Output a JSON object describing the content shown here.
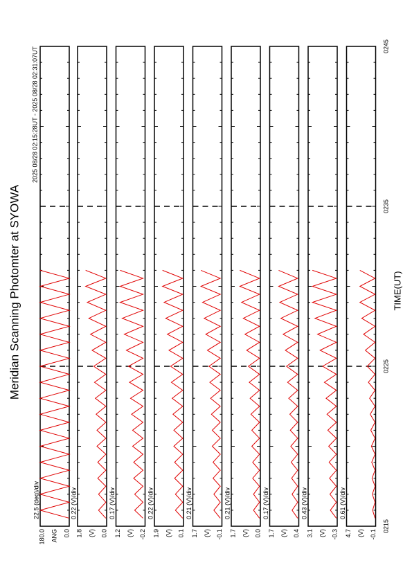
{
  "chart_data": [
    {
      "type": "line",
      "title": "Meridian Scanning Photomter at SYOWA",
      "subtitle": "2025 08/28 02:15:28UT - 2025 08/28 02:31:07UT",
      "scale_label": "22.5 (deg)/div",
      "unit": "ANG",
      "color": "#e00000",
      "x": [
        15.5,
        16,
        16.5,
        17,
        17.5,
        18,
        18.5,
        19,
        19.5,
        20,
        20.5,
        21,
        21.5,
        22,
        22.5,
        23,
        23.5,
        24,
        24.5,
        25,
        25.5,
        26,
        26.5,
        27,
        27.5,
        28,
        28.5,
        29,
        29.5,
        30,
        30.5,
        31
      ],
      "values": [
        0,
        180,
        0,
        180,
        0,
        180,
        0,
        180,
        0,
        180,
        0,
        180,
        0,
        180,
        0,
        180,
        0,
        180,
        0,
        180,
        0,
        180,
        0,
        180,
        0,
        180,
        0,
        180,
        0,
        180,
        0,
        180
      ],
      "xlim": [
        15,
        45
      ],
      "xticks": [
        {
          "value": 25,
          "label": "0225"
        },
        {
          "value": 35,
          "label": "0235"
        }
      ],
      "ylim": [
        0,
        180
      ],
      "yticks": [
        {
          "value": 0,
          "label": "0.0"
        },
        {
          "value": 180,
          "label": "180.0"
        }
      ]
    },
    {
      "type": "line",
      "scale_label": "0.22 (V)/div",
      "unit": "(V)",
      "color": "#e00000",
      "x": [
        15.5,
        16,
        16.5,
        17,
        17.5,
        18,
        18.5,
        19,
        19.5,
        20,
        20.5,
        21,
        21.5,
        22,
        22.5,
        23,
        23.5,
        24,
        24.5,
        25,
        25.5,
        26,
        26.5,
        27,
        27.5,
        28,
        28.5,
        29,
        29.5,
        30,
        30.5,
        31
      ],
      "values": [
        0.05,
        0.5,
        0.05,
        0.5,
        0.05,
        0.55,
        0.05,
        0.55,
        0.05,
        0.6,
        0.05,
        0.6,
        0.05,
        0.65,
        0.05,
        0.7,
        0.05,
        0.75,
        0.05,
        0.8,
        0.05,
        0.9,
        0.05,
        1.0,
        0.05,
        1.1,
        0.05,
        1.2,
        0.05,
        1.3,
        0.05,
        1.3
      ],
      "xlim": [
        15,
        45
      ],
      "xticks": [
        {
          "value": 25,
          "label": "0225"
        },
        {
          "value": 35,
          "label": "0235"
        }
      ],
      "ylim": [
        0,
        1.8
      ],
      "yticks": [
        {
          "value": 0,
          "label": "0.0"
        },
        1.8
      ]
    },
    {
      "type": "line",
      "scale_label": "0.17 (V)/div",
      "unit": "(V)",
      "color": "#e00000",
      "x": [
        15.5,
        16,
        16.5,
        17,
        17.5,
        18,
        18.5,
        19,
        19.5,
        20,
        20.5,
        21,
        21.5,
        22,
        22.5,
        23,
        23.5,
        24,
        24.5,
        25,
        25.5,
        26,
        26.5,
        27,
        27.5,
        28,
        28.5,
        29,
        29.5,
        30,
        30.5,
        31
      ],
      "values": [
        -0.1,
        0.3,
        -0.1,
        0.3,
        -0.1,
        0.35,
        -0.1,
        0.35,
        -0.1,
        0.4,
        -0.1,
        0.4,
        -0.1,
        0.45,
        -0.1,
        0.5,
        -0.1,
        0.55,
        -0.1,
        0.6,
        -0.1,
        0.7,
        -0.1,
        0.8,
        -0.1,
        0.9,
        -0.1,
        1.0,
        -0.1,
        1.0,
        -0.1,
        1.0
      ],
      "xlim": [
        15,
        45
      ],
      "xticks": [
        {
          "value": 25,
          "label": "0225"
        },
        {
          "value": 35,
          "label": "0235"
        }
      ],
      "ylim": [
        -0.2,
        1.2
      ],
      "yticks": [
        -0.2,
        1.2
      ]
    },
    {
      "type": "line",
      "scale_label": "0.22 (V)/div",
      "unit": "(V)",
      "color": "#e00000",
      "x": [
        15.5,
        16,
        16.5,
        17,
        17.5,
        18,
        18.5,
        19,
        19.5,
        20,
        20.5,
        21,
        21.5,
        22,
        22.5,
        23,
        23.5,
        24,
        24.5,
        25,
        25.5,
        26,
        26.5,
        27,
        27.5,
        28,
        28.5,
        29,
        29.5,
        30,
        30.5,
        31
      ],
      "values": [
        0.15,
        0.6,
        0.15,
        0.6,
        0.15,
        0.65,
        0.15,
        0.65,
        0.15,
        0.7,
        0.15,
        0.7,
        0.15,
        0.75,
        0.15,
        0.8,
        0.15,
        0.85,
        0.15,
        0.9,
        0.15,
        1.0,
        0.15,
        1.1,
        0.15,
        1.2,
        0.15,
        1.3,
        0.15,
        1.4,
        0.15,
        1.4
      ],
      "xlim": [
        15,
        45
      ],
      "xticks": [
        {
          "value": 25,
          "label": "0225"
        },
        {
          "value": 35,
          "label": "0235"
        }
      ],
      "ylim": [
        0.1,
        1.9
      ],
      "yticks": [
        0.1,
        1.9
      ]
    },
    {
      "type": "line",
      "scale_label": "0.21 (V)/div",
      "unit": "(V)",
      "color": "#e00000",
      "x": [
        15.5,
        16,
        16.5,
        17,
        17.5,
        18,
        18.5,
        19,
        19.5,
        20,
        20.5,
        21,
        21.5,
        22,
        22.5,
        23,
        23.5,
        24,
        24.5,
        25,
        25.5,
        26,
        26.5,
        27,
        27.5,
        28,
        28.5,
        29,
        29.5,
        30,
        30.5,
        31
      ],
      "values": [
        0.0,
        0.4,
        0.0,
        0.4,
        0.0,
        0.45,
        0.0,
        0.45,
        0.0,
        0.5,
        0.0,
        0.5,
        0.0,
        0.55,
        0.0,
        0.6,
        0.0,
        0.65,
        0.0,
        0.7,
        0.0,
        0.8,
        0.0,
        0.9,
        0.0,
        1.0,
        0.0,
        1.1,
        0.0,
        1.2,
        0.0,
        1.2
      ],
      "xlim": [
        15,
        45
      ],
      "xticks": [
        {
          "value": 25,
          "label": "0225"
        },
        {
          "value": 35,
          "label": "0235"
        }
      ],
      "ylim": [
        -0.1,
        1.7
      ],
      "yticks": [
        -0.1,
        1.7
      ]
    },
    {
      "type": "line",
      "scale_label": "0.21 (V)/div",
      "unit": "(V)",
      "color": "#e00000",
      "x": [
        15.5,
        16,
        16.5,
        17,
        17.5,
        18,
        18.5,
        19,
        19.5,
        20,
        20.5,
        21,
        21.5,
        22,
        22.5,
        23,
        23.5,
        24,
        24.5,
        25,
        25.5,
        26,
        26.5,
        27,
        27.5,
        28,
        28.5,
        29,
        29.5,
        30,
        30.5,
        31
      ],
      "values": [
        0.05,
        0.4,
        0.05,
        0.4,
        0.05,
        0.45,
        0.05,
        0.45,
        0.05,
        0.5,
        0.05,
        0.5,
        0.05,
        0.55,
        0.05,
        0.6,
        0.05,
        0.65,
        0.05,
        0.7,
        0.05,
        0.8,
        0.05,
        0.9,
        0.05,
        1.0,
        0.05,
        1.1,
        0.05,
        1.2,
        0.05,
        1.2
      ],
      "xlim": [
        15,
        45
      ],
      "xticks": [
        {
          "value": 25,
          "label": "0225"
        },
        {
          "value": 35,
          "label": "0235"
        }
      ],
      "ylim": [
        0,
        1.7
      ],
      "yticks": [
        {
          "value": 0,
          "label": "0.0"
        },
        1.7
      ]
    },
    {
      "type": "line",
      "scale_label": "0.17 (V)/div",
      "unit": "(V)",
      "color": "#e00000",
      "x": [
        15.5,
        16,
        16.5,
        17,
        17.5,
        18,
        18.5,
        19,
        19.5,
        20,
        20.5,
        21,
        21.5,
        22,
        22.5,
        23,
        23.5,
        24,
        24.5,
        25,
        25.5,
        26,
        26.5,
        27,
        27.5,
        28,
        28.5,
        29,
        29.5,
        30,
        30.5,
        31
      ],
      "values": [
        0.45,
        0.7,
        0.45,
        0.7,
        0.45,
        0.72,
        0.45,
        0.74,
        0.45,
        0.76,
        0.45,
        0.78,
        0.45,
        0.8,
        0.45,
        0.85,
        0.45,
        0.9,
        0.45,
        0.95,
        0.45,
        1.0,
        0.45,
        1.1,
        0.45,
        1.2,
        0.45,
        1.25,
        0.45,
        1.3,
        0.45,
        1.3
      ],
      "xlim": [
        15,
        45
      ],
      "xticks": [
        {
          "value": 25,
          "label": "0225"
        },
        {
          "value": 35,
          "label": "0235"
        }
      ],
      "ylim": [
        0.4,
        1.7
      ],
      "yticks": [
        0.4,
        1.7
      ]
    },
    {
      "type": "line",
      "scale_label": "0.43 (V)/div",
      "unit": "(V)",
      "color": "#e00000",
      "x": [
        15.5,
        16,
        16.5,
        17,
        17.5,
        18,
        18.5,
        19,
        19.5,
        20,
        20.5,
        21,
        21.5,
        22,
        22.5,
        23,
        23.5,
        24,
        24.5,
        25,
        25.5,
        26,
        26.5,
        27,
        27.5,
        28,
        28.5,
        29,
        29.5,
        30,
        30.5,
        31
      ],
      "values": [
        -0.2,
        0.5,
        -0.2,
        0.55,
        -0.2,
        0.6,
        -0.2,
        0.65,
        -0.2,
        0.7,
        -0.2,
        0.8,
        -0.2,
        0.9,
        -0.2,
        1.0,
        -0.2,
        1.2,
        -0.2,
        1.4,
        -0.2,
        1.7,
        -0.2,
        2.0,
        -0.2,
        2.3,
        -0.2,
        2.6,
        -0.2,
        2.6,
        -0.2,
        2.6
      ],
      "xlim": [
        15,
        45
      ],
      "xticks": [
        {
          "value": 25,
          "label": "0225"
        },
        {
          "value": 35,
          "label": "0235"
        }
      ],
      "ylim": [
        -0.3,
        3.1
      ],
      "yticks": [
        -0.3,
        3.1
      ]
    },
    {
      "type": "line",
      "scale_label": "0.61 (V)/div",
      "unit": "(V)",
      "color": "#e00000",
      "xlabel": "TIME(UT)",
      "x": [
        15.5,
        16,
        16.5,
        17,
        17.5,
        18,
        18.5,
        19,
        19.5,
        20,
        20.5,
        21,
        21.5,
        22,
        22.5,
        23,
        23.5,
        24,
        24.5,
        25,
        25.5,
        26,
        26.5,
        27,
        27.5,
        28,
        28.5,
        29,
        29.5,
        30,
        30.5,
        31
      ],
      "values": [
        0.0,
        0.4,
        0.0,
        0.45,
        0.0,
        0.5,
        0.0,
        0.55,
        0.0,
        0.6,
        0.0,
        0.7,
        0.0,
        0.8,
        0.0,
        0.9,
        0.0,
        1.1,
        0.0,
        1.3,
        0.0,
        1.6,
        0.0,
        1.9,
        0.0,
        2.2,
        0.0,
        2.5,
        0.0,
        2.5,
        0.0,
        2.5
      ],
      "xlim": [
        15,
        45
      ],
      "xticks": [
        {
          "value": 15,
          "label": "0215"
        },
        {
          "value": 25,
          "label": "0225"
        },
        {
          "value": 35,
          "label": "0235"
        },
        {
          "value": 45,
          "label": "0245"
        }
      ],
      "ylim": [
        -0.1,
        4.7
      ],
      "yticks": [
        -0.1,
        4.7
      ]
    }
  ]
}
